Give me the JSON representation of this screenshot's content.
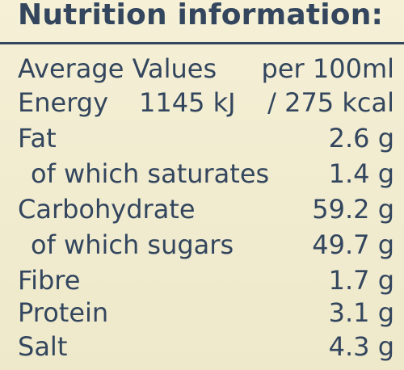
{
  "title": "Nutrition information:",
  "header": {
    "label": "Average Values",
    "per": "per 100ml"
  },
  "energy": {
    "label": "Energy",
    "kj": "1145 kJ",
    "kcal": "/ 275 kcal"
  },
  "rows": [
    {
      "label": "Fat",
      "value": "2.6 g"
    },
    {
      "label": "of which saturates",
      "value": "1.4 g"
    },
    {
      "label": "Carbohydrate",
      "value": "59.2 g"
    },
    {
      "label": "of which sugars",
      "value": "49.7 g"
    },
    {
      "label": "Fibre",
      "value": "1.7 g"
    },
    {
      "label": "Protein",
      "value": "3.1 g"
    },
    {
      "label": "Salt",
      "value": "4.3 g"
    }
  ]
}
